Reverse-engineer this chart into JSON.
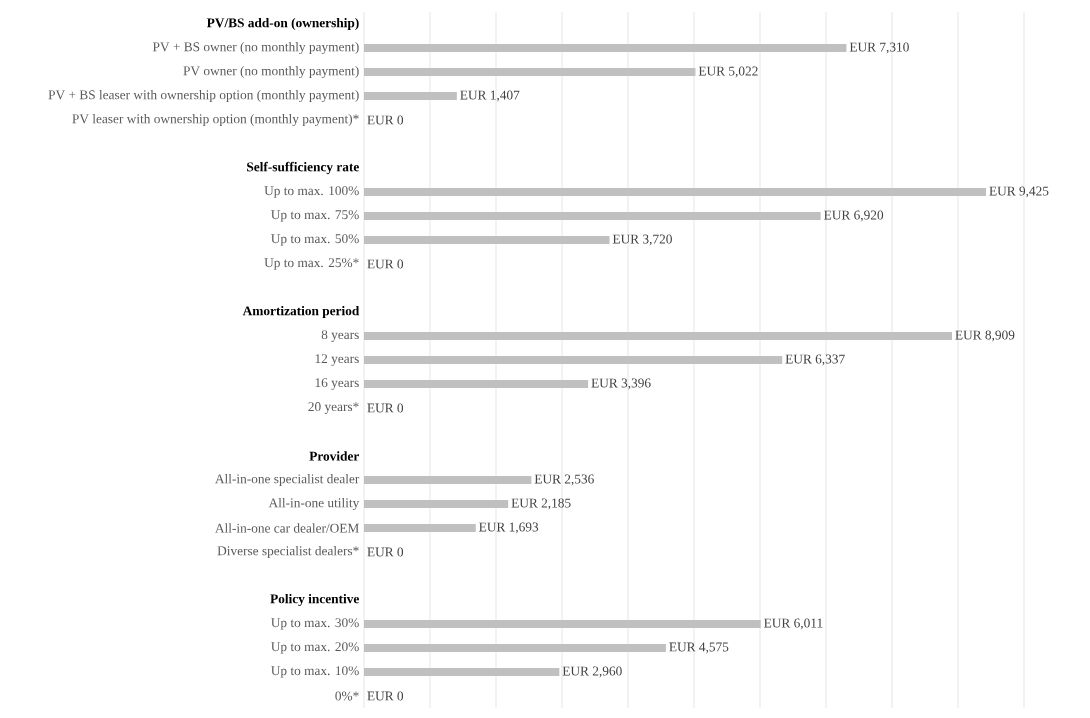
{
  "chart_data": {
    "type": "bar",
    "orientation": "horizontal",
    "color": "#c0c0c0",
    "grid": "x",
    "tick_labels": "y",
    "categories": [
      "PV/BS add-on (ownership)",
      "PV + BS owner (no monthly payment)",
      "PV owner (no monthly payment)",
      "PV + BS leaser with ownership option (monthly payment)",
      "PV leaser with ownership option (monthly payment)*",
      null,
      "Self-sufficiency rate",
      "Up to max. 100%",
      "Up to max. 75%",
      "Up to max. 50%",
      "Up to max. 25%*",
      null,
      "Amortization period",
      "8 years",
      "12 years",
      "16 years",
      "20 years*",
      null,
      "Provider",
      "All-in-one specialist dealer",
      "All-in-one utility",
      "All-in-one car dealer/OEM",
      "Diverse specialist dealers*",
      null,
      "Policy incentive",
      "Up to max. 30%",
      "Up to max. 20%",
      "Up to max. 10%",
      "0%*"
    ],
    "values": [
      null,
      7310,
      5022,
      1407,
      0,
      null,
      null,
      9425,
      6920,
      3720,
      0,
      null,
      null,
      8909,
      6337,
      3396,
      0,
      null,
      null,
      2536,
      2185,
      1693,
      0,
      null,
      null,
      6011,
      4575,
      2960,
      0
    ],
    "value_labels": [
      null,
      "EUR 7,310",
      "EUR 5,022",
      "EUR 1,407",
      "EUR 0",
      null,
      null,
      "EUR 9,425",
      "EUR 6,920",
      "EUR 3,720",
      "EUR 0",
      null,
      null,
      "EUR 8,909",
      "EUR 6,337",
      "EUR 3,396",
      "EUR 0",
      null,
      null,
      "EUR 2,536",
      "EUR 2,185",
      "EUR 1,693",
      "EUR 0",
      null,
      null,
      "EUR 6,011",
      "EUR 4,575",
      "EUR 2,960",
      "EUR 0"
    ],
    "xlim": [
      0,
      10000
    ],
    "xticks": [
      {
        "value": 0,
        "label": null
      },
      {
        "value": 1000,
        "label": null
      },
      {
        "value": 2000,
        "label": null
      },
      {
        "value": 3000,
        "label": null
      },
      {
        "value": 4000,
        "label": null
      },
      {
        "value": 5000,
        "label": null
      },
      {
        "value": 6000,
        "label": null
      },
      {
        "value": 7000,
        "label": null
      },
      {
        "value": 8000,
        "label": null
      },
      {
        "value": 9000,
        "label": null
      },
      {
        "value": 10000,
        "label": null
      }
    ]
  }
}
